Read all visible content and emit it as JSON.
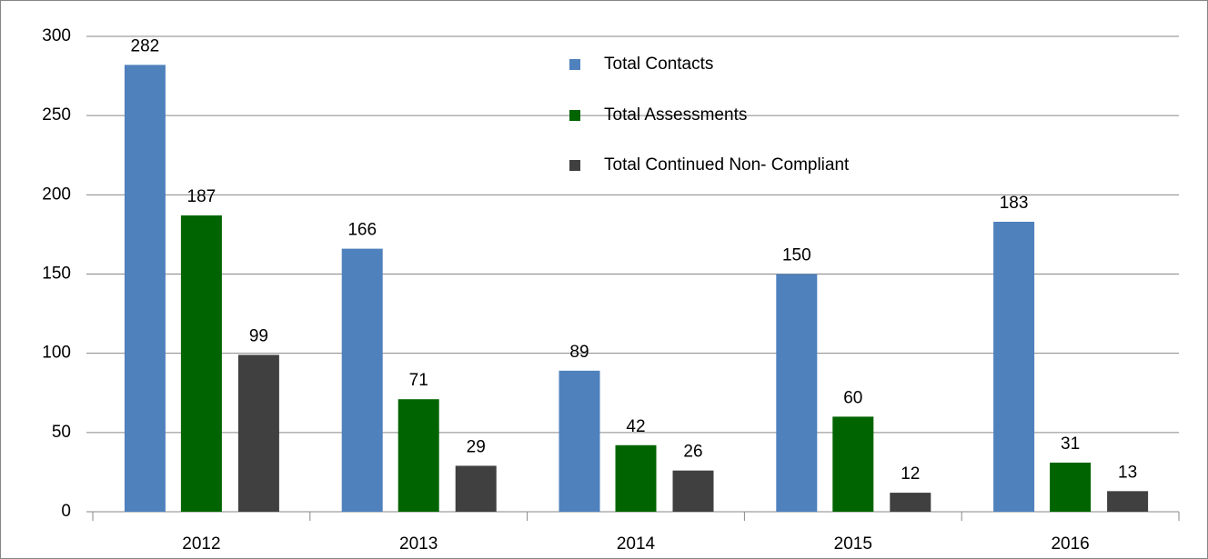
{
  "chart_data": {
    "type": "bar",
    "categories": [
      "2012",
      "2013",
      "2014",
      "2015",
      "2016"
    ],
    "series": [
      {
        "name": "Total Contacts",
        "color": "#4f81bd",
        "values": [
          282,
          166,
          89,
          150,
          183
        ]
      },
      {
        "name": "Total Assessments",
        "color": "#006400",
        "values": [
          187,
          71,
          42,
          60,
          31
        ]
      },
      {
        "name": "Total Continued Non- Compliant",
        "color": "#404040",
        "values": [
          99,
          29,
          26,
          12,
          13
        ]
      }
    ],
    "ylim": [
      0,
      300
    ],
    "yticks": [
      0,
      50,
      100,
      150,
      200,
      250,
      300
    ],
    "grid": true,
    "legend": "top"
  }
}
